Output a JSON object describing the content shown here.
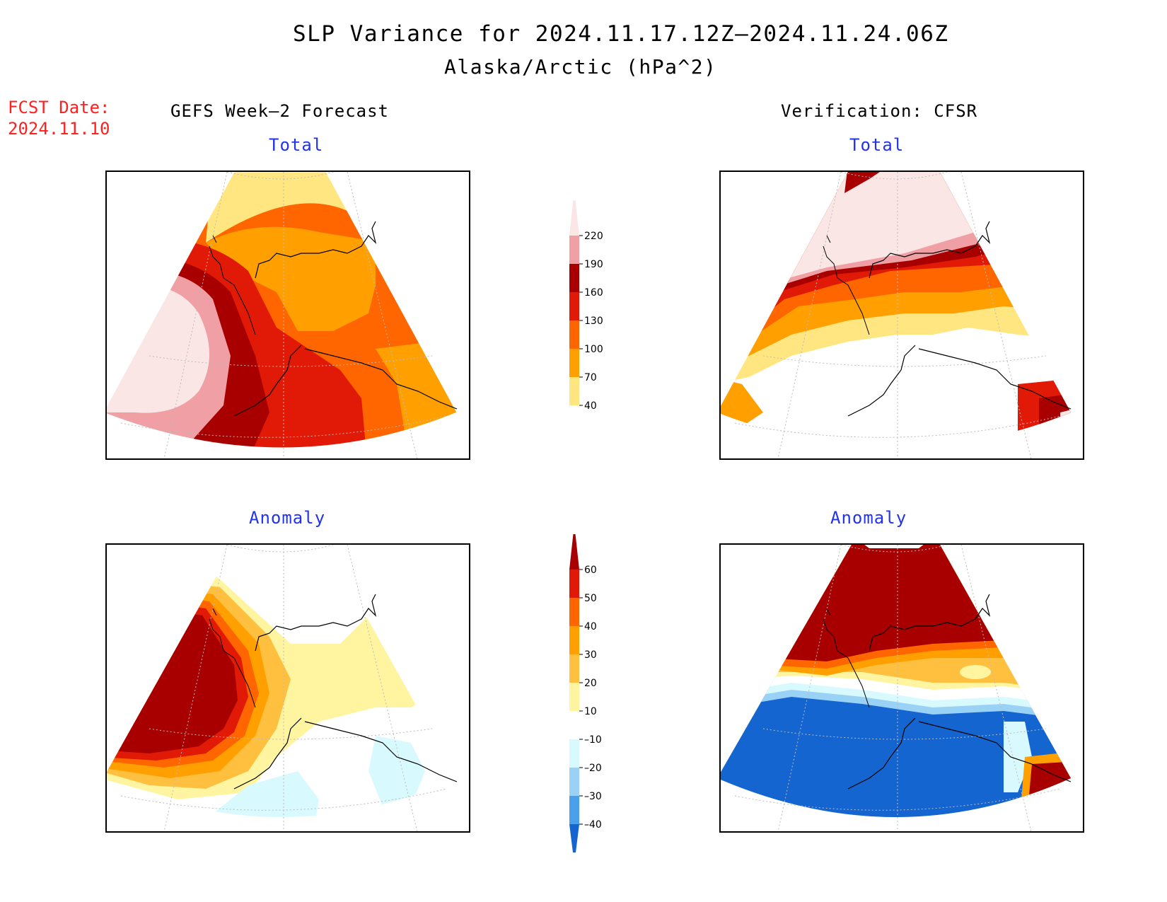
{
  "title": "SLP Variance for 2024.11.17.12Z–2024.11.24.06Z",
  "subtitle": "Alaska/Arctic (hPa^2)",
  "fcst_date_label": "FCST Date:",
  "fcst_date_value": "2024.11.10",
  "left_header": "GEFS Week–2 Forecast",
  "right_header": "Verification: CFSR",
  "panels": {
    "top_left_title": "Total",
    "top_right_title": "Total",
    "bottom_left_title": "Anomaly",
    "bottom_right_title": "Anomaly"
  },
  "colorbar_total": {
    "labels": [
      "220",
      "190",
      "160",
      "130",
      "100",
      "70",
      "40"
    ],
    "colors": [
      "#fbe6e6",
      "#f0a0a4",
      "#a80000",
      "#e01a06",
      "#ff6600",
      "#ffa000",
      "#ffe680",
      "#ffffff"
    ]
  },
  "colorbar_anomaly": {
    "labels": [
      "60",
      "50",
      "40",
      "30",
      "20",
      "10",
      "–10",
      "–20",
      "–30",
      "–40"
    ],
    "colors": [
      "#a80000",
      "#e01a06",
      "#ff6600",
      "#ffa000",
      "#ffc040",
      "#fff5a0",
      "#ffffff",
      "#d8faff",
      "#9ad2f5",
      "#4aa0ea",
      "#1565d0"
    ]
  },
  "palette": {
    "pink_light": "#fbe6e6",
    "pink": "#f0a0a4",
    "dark_red": "#a80000",
    "red": "#e01a06",
    "orange": "#ff6600",
    "amber": "#ffa000",
    "light_orange": "#ffc040",
    "yellow": "#ffe680",
    "pale_yellow": "#fff5a0",
    "pale_cyan": "#d8faff",
    "light_blue": "#9ad2f5",
    "mid_blue": "#4aa0ea",
    "blue": "#1565d0",
    "title_blue": "#2233ee",
    "fcst_red": "#ff2020"
  }
}
